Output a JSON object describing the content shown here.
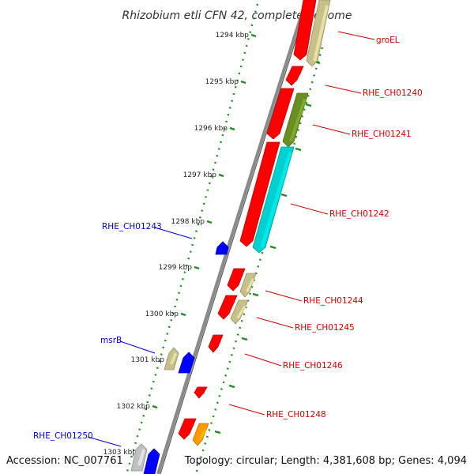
{
  "title": "Rhizobium etli CFN 42, complete genome",
  "footer": {
    "accession": "Accession: NC_007761",
    "summary": "Topology: circular; Length: 4,381,608 bp; Genes: 4,094"
  },
  "colors": {
    "backbone": "#8a8a8a",
    "ruler": "#1e8c1e",
    "forward_label": "#0000cc",
    "reverse_label": "#cc0000"
  },
  "ticks": [
    "1294 kbp",
    "1295 kbp",
    "1296 kbp",
    "1297 kbp",
    "1298 kbp",
    "1299 kbp",
    "1300 kbp",
    "1301 kbp",
    "1302 kbp",
    "1303 kbp"
  ],
  "genes": [
    {
      "name": "groEL",
      "strand": "reverse",
      "color": "#ff0000",
      "pair_color": "#c8c08a"
    },
    {
      "name": "RHE_CH01240",
      "strand": "reverse",
      "color": "#ff0000"
    },
    {
      "name": "RHE_CH01241",
      "strand": "reverse",
      "color": "#ff0000",
      "pair_color": "#6b8e23"
    },
    {
      "name": "RHE_CH01242",
      "strand": "reverse",
      "color": "#ff0000",
      "pair_color": "#00d0d0"
    },
    {
      "name": "RHE_CH01243",
      "strand": "forward",
      "color": "#0000ff"
    },
    {
      "name": "RHE_CH01244",
      "strand": "reverse",
      "color": "#ff0000",
      "pair_color": "#c8c08a"
    },
    {
      "name": "RHE_CH01245",
      "strand": "reverse",
      "color": "#ff0000",
      "pair_color": "#c8c08a"
    },
    {
      "name": "RHE_CH01246",
      "strand": "reverse",
      "color": "#ff0000"
    },
    {
      "name": "msrB",
      "strand": "forward",
      "color": "#0000ff",
      "pair_color": "#c8c08a"
    },
    {
      "name": "RHE_CH01248",
      "strand": "reverse",
      "color": "#ff0000",
      "pair_color": "#ff9900"
    },
    {
      "name": "RHE_CH01250",
      "strand": "forward",
      "color": "#0000ff",
      "pair_color": "#c0c0c0"
    }
  ]
}
